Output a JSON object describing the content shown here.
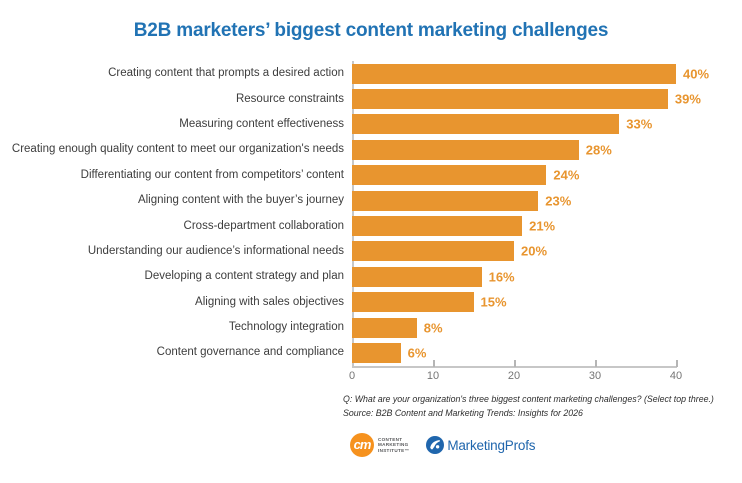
{
  "title": "B2B marketers’ biggest content marketing challenges",
  "chart_data": {
    "type": "bar",
    "orientation": "horizontal",
    "title": "B2B marketers’ biggest content marketing challenges",
    "categories": [
      "Creating content that prompts a desired action",
      "Resource constraints",
      "Measuring content effectiveness",
      "Creating enough quality content to meet our organization's needs",
      "Differentiating our content from competitors’ content",
      "Aligning content with the buyer’s journey",
      "Cross-department collaboration",
      "Understanding our audience’s informational needs",
      "Developing a content strategy and plan",
      "Aligning with sales objectives",
      "Technology integration",
      "Content governance and compliance"
    ],
    "values": [
      40,
      39,
      33,
      28,
      24,
      23,
      21,
      20,
      16,
      15,
      8,
      6
    ],
    "value_labels": [
      "40%",
      "39%",
      "33%",
      "28%",
      "24%",
      "23%",
      "21%",
      "20%",
      "16%",
      "15%",
      "8%",
      "6%"
    ],
    "xlabel": "",
    "ylabel": "",
    "xlim": [
      0,
      40
    ],
    "x_ticks": [
      0,
      10,
      20,
      30,
      40
    ],
    "grid": false,
    "legend": false,
    "bar_color": "#e8952f",
    "value_label_color": "#e8952f"
  },
  "footnote": {
    "question": "Q: What are your organization's three biggest content marketing challenges? (Select top three.)",
    "source": "Source: B2B Content and Marketing Trends: Insights for 2026"
  },
  "logos": {
    "cmi": {
      "monogram": "cm",
      "line1": "CONTENT",
      "line2": "MARKETING",
      "line3": "INSTITUTE™"
    },
    "marketingprofs": {
      "text": "MarketingProfs"
    }
  },
  "colors": {
    "title_blue": "#2173b4",
    "bar_orange": "#e8952f",
    "label_gray": "#3d3d3d",
    "axis_gray": "#c7c7c7",
    "cmi_orange": "#f6921e",
    "mp_blue": "#2066ad"
  }
}
